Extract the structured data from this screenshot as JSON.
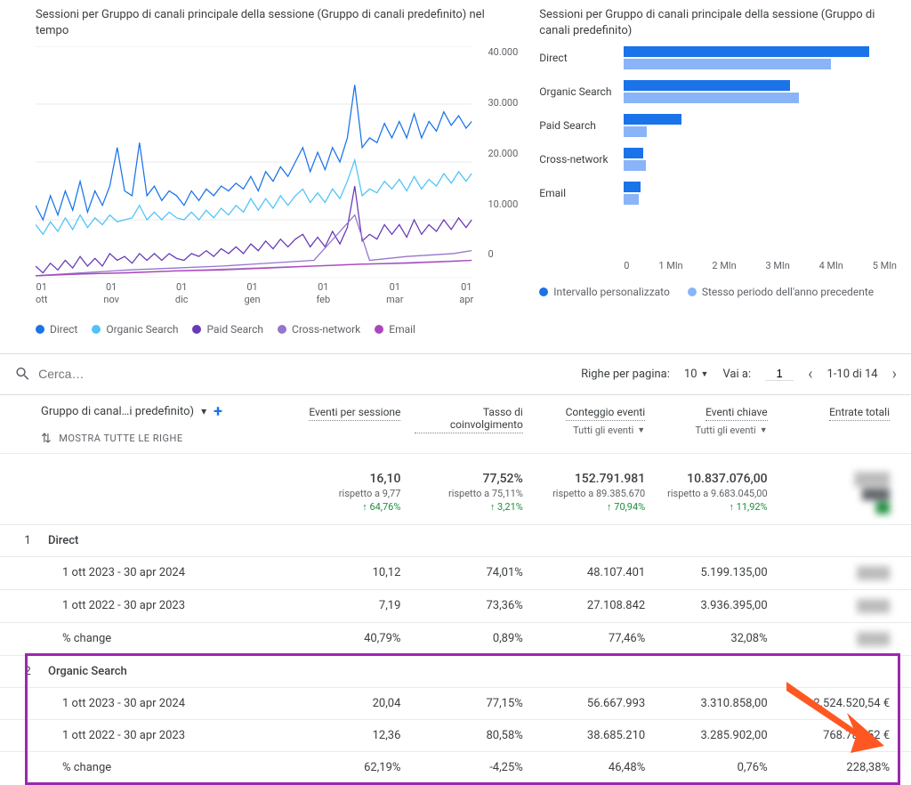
{
  "line_chart": {
    "title": "Sessioni per Gruppo di canali principale della sessione (Gruppo di canali predefinito) nel tempo",
    "y_ticks": [
      "40.000",
      "30.000",
      "20.000",
      "10.000",
      "0"
    ],
    "x_labels": [
      {
        "d": "01",
        "m": "ott"
      },
      {
        "d": "01",
        "m": "nov"
      },
      {
        "d": "01",
        "m": "dic"
      },
      {
        "d": "01",
        "m": "gen"
      },
      {
        "d": "01",
        "m": "feb"
      },
      {
        "d": "01",
        "m": "mar"
      },
      {
        "d": "01",
        "m": "apr"
      }
    ],
    "ylim": [
      0,
      40000
    ],
    "series": [
      {
        "name": "Direct",
        "color": "#1a73e8"
      },
      {
        "name": "Organic Search",
        "color": "#4fc3f7"
      },
      {
        "name": "Paid Search",
        "color": "#673ab7"
      },
      {
        "name": "Cross-network",
        "color": "#9575cd"
      },
      {
        "name": "Email",
        "color": "#ab47bc"
      }
    ],
    "grid_color": "#e8eaed",
    "background": "#ffffff"
  },
  "bar_chart": {
    "title": "Sessioni per Gruppo di canali principale della sessione (Gruppo di canali predefinito)",
    "categories": [
      "Direct",
      "Organic Search",
      "Paid Search",
      "Cross-network",
      "Email"
    ],
    "series": [
      {
        "name": "Intervallo personalizzato",
        "color": "#1a73e8",
        "values": [
          4500000,
          3050000,
          1050000,
          350000,
          300000
        ]
      },
      {
        "name": "Stesso periodo dell'anno precedente",
        "color": "#8ab4f8",
        "values": [
          3800000,
          3200000,
          420000,
          400000,
          280000
        ]
      }
    ],
    "x_ticks": [
      "0",
      "1 Mln",
      "2 Mln",
      "3 Mln",
      "4 Mln",
      "5 Mln"
    ],
    "xmax": 5000000
  },
  "controls": {
    "search_placeholder": "Cerca…",
    "rows_per_page_label": "Righe per pagina:",
    "rows_per_page": "10",
    "goto_label": "Vai a:",
    "goto_value": "1",
    "range": "1-10 di 14"
  },
  "table": {
    "first_col_label": "Gruppo di canal…i predefinito)",
    "show_all_rows": "MOSTRA TUTTE LE RIGHE",
    "columns": [
      {
        "title": "Eventi per sessione"
      },
      {
        "title": "Tasso di coinvolgimento"
      },
      {
        "title": "Conteggio eventi",
        "sub": "Tutti gli eventi"
      },
      {
        "title": "Eventi chiave",
        "sub": "Tutti gli eventi"
      },
      {
        "title": "Entrate totali"
      }
    ],
    "summary": [
      {
        "val": "16,10",
        "comp": "rispetto a 9,77",
        "pct": "64,76%"
      },
      {
        "val": "77,52%",
        "comp": "rispetto a 75,11%",
        "pct": "3,21%"
      },
      {
        "val": "152.791.981",
        "comp": "rispetto a 89.385.670",
        "pct": "70,94%"
      },
      {
        "val": "10.837.076,00",
        "comp": "rispetto a 9.683.045,00",
        "pct": "11,92%"
      },
      {
        "val": "",
        "comp": "",
        "pct": "",
        "blur": true
      }
    ],
    "groups": [
      {
        "idx": "1",
        "name": "Direct",
        "rows": [
          {
            "label": "1 ott 2023 - 30 apr 2024",
            "cells": [
              "10,12",
              "74,01%",
              "48.107.401",
              "5.199.135,00",
              ""
            ]
          },
          {
            "label": "1 ott 2022 - 30 apr 2023",
            "cells": [
              "7,19",
              "73,36%",
              "27.108.842",
              "3.936.395,00",
              ""
            ]
          },
          {
            "label": "% change",
            "cells": [
              "40,79%",
              "0,89%",
              "77,46%",
              "32,08%",
              ""
            ]
          }
        ]
      },
      {
        "idx": "2",
        "name": "Organic Search",
        "highlighted": true,
        "rows": [
          {
            "label": "1 ott 2023 - 30 apr 2024",
            "cells": [
              "20,04",
              "77,15%",
              "56.667.993",
              "3.310.858,00",
              "2.524.520,54 €"
            ]
          },
          {
            "label": "1 ott 2022 - 30 apr 2023",
            "cells": [
              "12,36",
              "80,58%",
              "38.685.210",
              "3.285.902,00",
              "768.787,52 €"
            ]
          },
          {
            "label": "% change",
            "cells": [
              "62,19%",
              "-4,25%",
              "46,48%",
              "0,76%",
              "228,38%"
            ]
          }
        ]
      }
    ]
  }
}
